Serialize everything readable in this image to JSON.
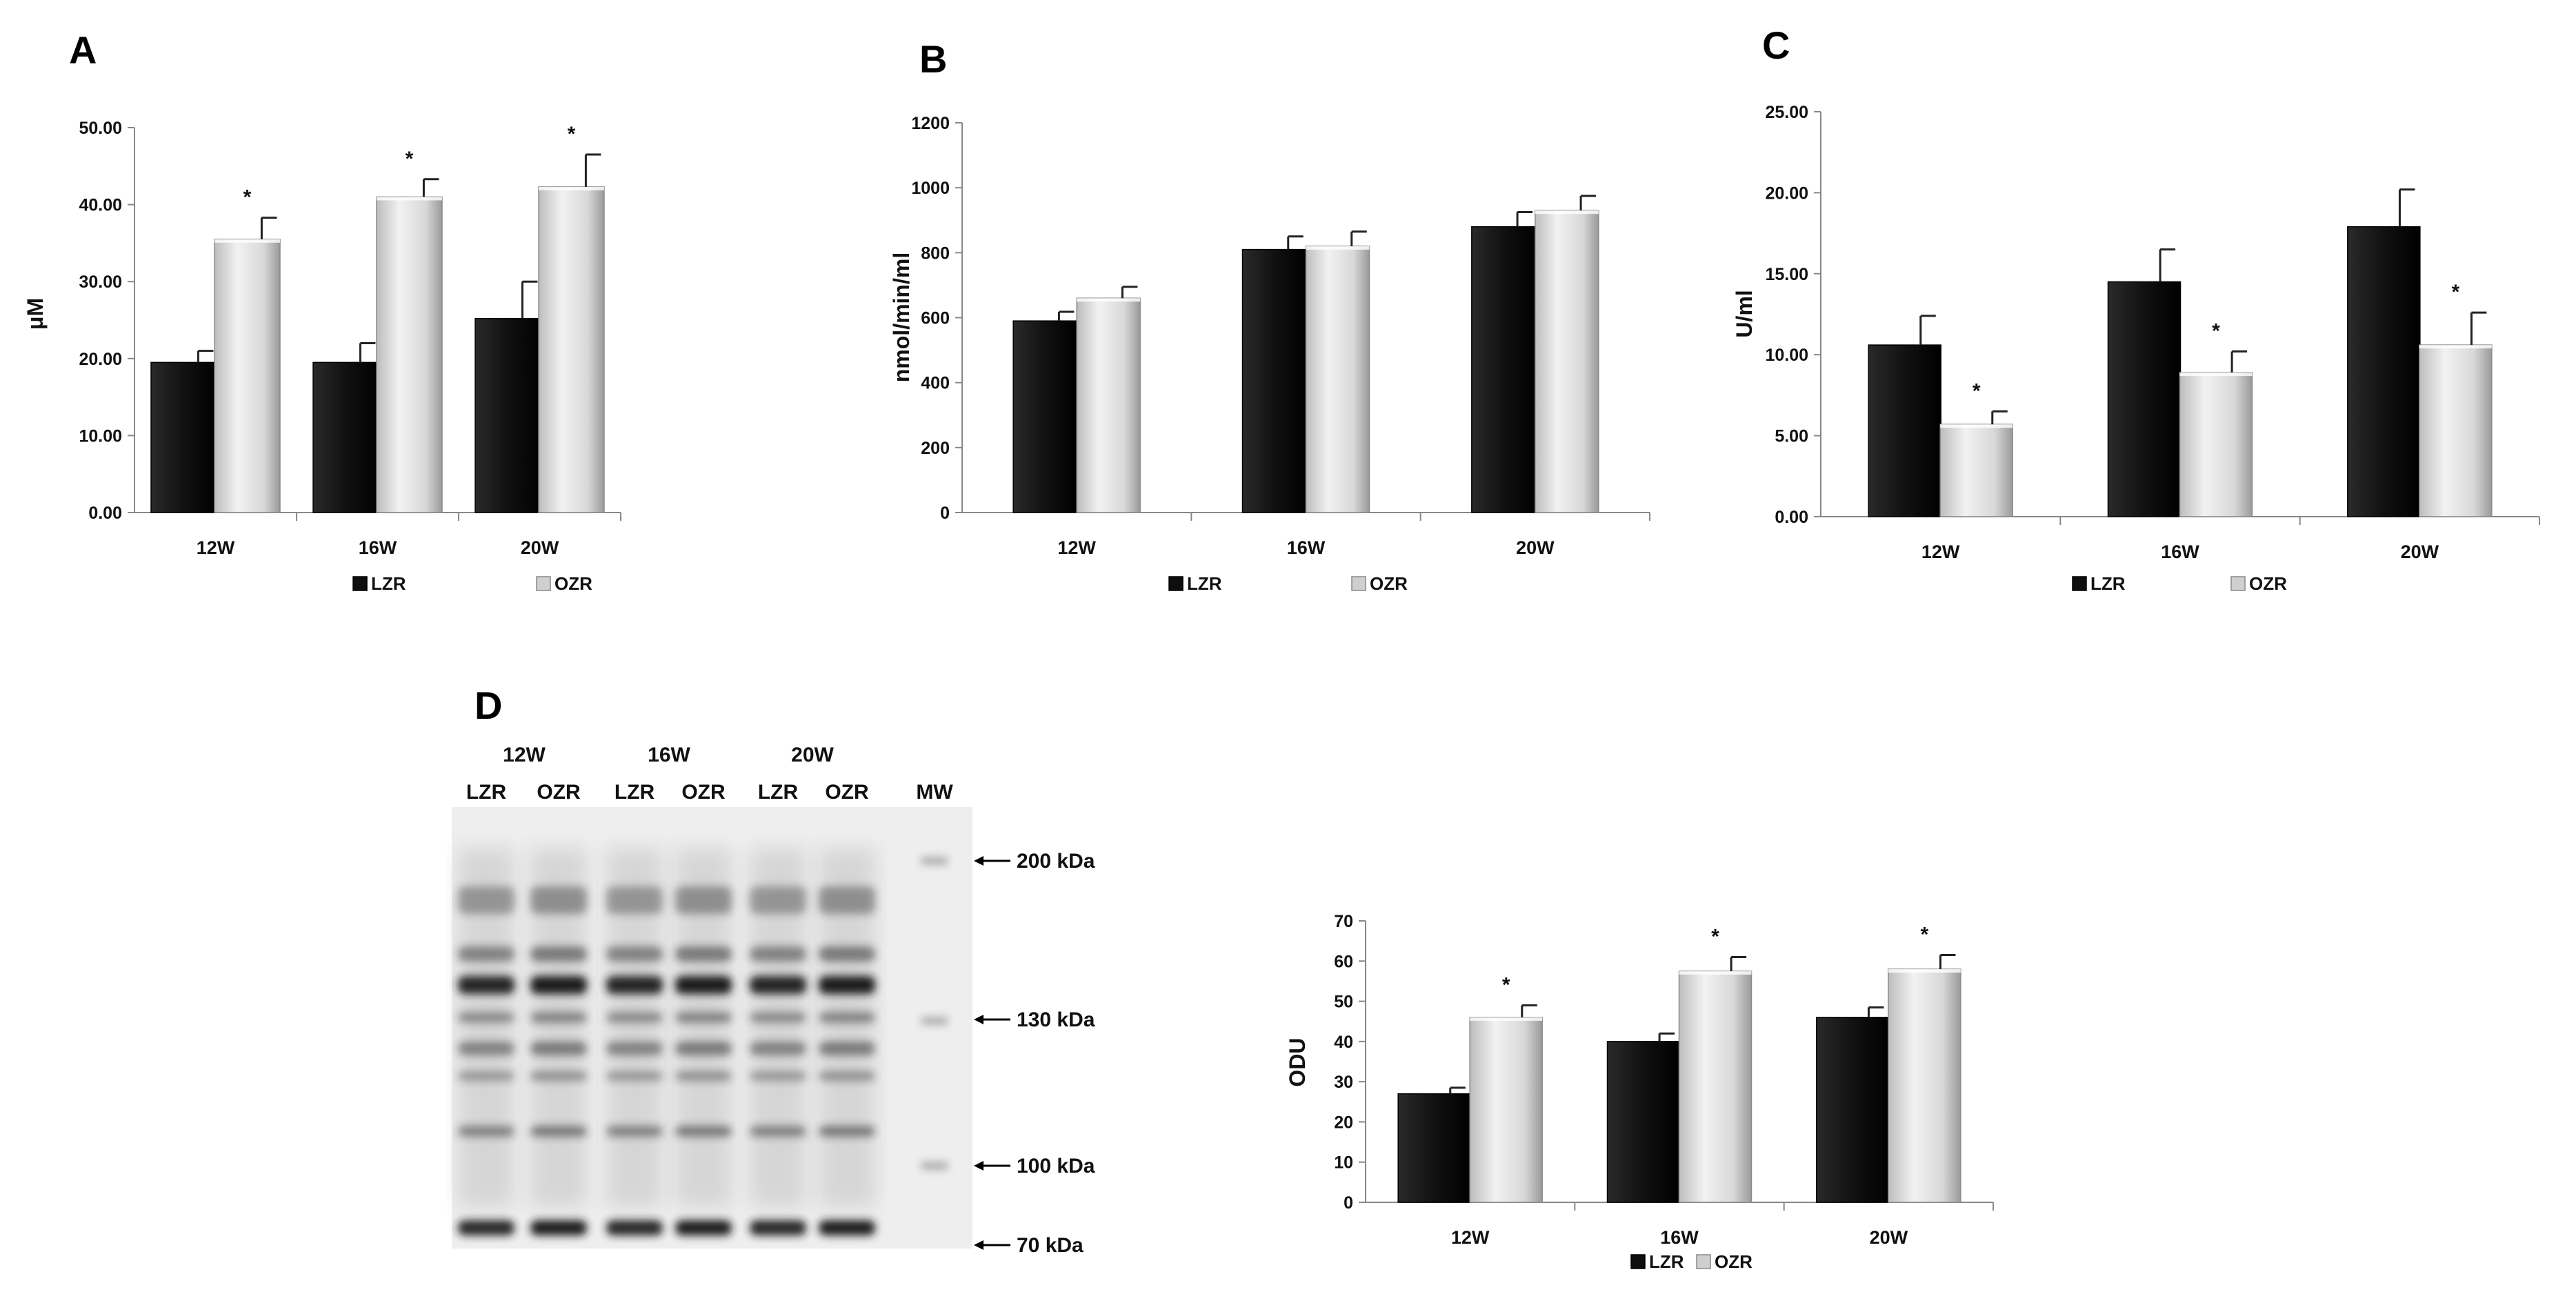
{
  "colors": {
    "lzr_top": "#3a3a3a",
    "lzr_bottom": "#0c0c0c",
    "ozr_light": "#e4e4e4",
    "ozr_dark": "#9a9a9a",
    "blot_bg": "#eeeeee",
    "band": "#1a1a1a"
  },
  "chart_data": [
    {
      "id": "A",
      "panel": "A",
      "type": "bar",
      "categories": [
        "12W",
        "16W",
        "20W"
      ],
      "ylabel": "μM",
      "ylim": [
        0,
        50
      ],
      "yticks": [
        "0.00",
        "10.00",
        "20.00",
        "30.00",
        "40.00",
        "50.00"
      ],
      "series": [
        {
          "name": "LZR",
          "values": [
            19.5,
            19.5,
            25.2
          ],
          "errors": [
            1.5,
            2.5,
            4.8
          ],
          "star": [
            false,
            false,
            false
          ]
        },
        {
          "name": "OZR",
          "values": [
            35.5,
            41.0,
            42.3
          ],
          "errors": [
            2.8,
            2.3,
            4.2
          ],
          "star": [
            true,
            true,
            true
          ]
        }
      ],
      "star_text": "*",
      "legend": [
        "LZR",
        "OZR"
      ]
    },
    {
      "id": "B",
      "panel": "B",
      "type": "bar",
      "categories": [
        "12W",
        "16W",
        "20W"
      ],
      "ylabel": "nmol/min/ml",
      "ylim": [
        0,
        1200
      ],
      "yticks": [
        "0",
        "200",
        "400",
        "600",
        "800",
        "1000",
        "1200"
      ],
      "series": [
        {
          "name": "LZR",
          "values": [
            590,
            810,
            880
          ],
          "errors": [
            28,
            40,
            45
          ],
          "star": [
            false,
            false,
            false
          ]
        },
        {
          "name": "OZR",
          "values": [
            660,
            820,
            930
          ],
          "errors": [
            35,
            45,
            45
          ],
          "star": [
            false,
            false,
            false
          ]
        }
      ],
      "star_text": "*",
      "legend": [
        "LZR",
        "OZR"
      ]
    },
    {
      "id": "C",
      "panel": "C",
      "type": "bar",
      "categories": [
        "12W",
        "16W",
        "20W"
      ],
      "ylabel": "U/ml",
      "ylim": [
        0,
        25
      ],
      "yticks": [
        "0.00",
        "5.00",
        "10.00",
        "15.00",
        "20.00",
        "25.00"
      ],
      "series": [
        {
          "name": "LZR",
          "values": [
            10.6,
            14.5,
            17.9
          ],
          "errors": [
            1.8,
            2.0,
            2.3
          ],
          "star": [
            false,
            false,
            false
          ]
        },
        {
          "name": "OZR",
          "values": [
            5.7,
            8.9,
            10.6
          ],
          "errors": [
            0.8,
            1.3,
            2.0
          ],
          "star": [
            true,
            true,
            true
          ]
        }
      ],
      "star_text": "*",
      "legend": [
        "LZR",
        "OZR"
      ]
    },
    {
      "id": "D",
      "panel": "",
      "type": "bar",
      "categories": [
        "12W",
        "16W",
        "20W"
      ],
      "ylabel": "ODU",
      "ylim": [
        0,
        70
      ],
      "yticks": [
        "0",
        "10",
        "20",
        "30",
        "40",
        "50",
        "60",
        "70"
      ],
      "series": [
        {
          "name": "LZR",
          "values": [
            27,
            40,
            46
          ],
          "errors": [
            1.5,
            2.0,
            2.5
          ],
          "star": [
            false,
            false,
            false
          ]
        },
        {
          "name": "OZR",
          "values": [
            46,
            57.5,
            58
          ],
          "errors": [
            3.0,
            3.5,
            3.5
          ],
          "star": [
            true,
            true,
            true
          ]
        }
      ],
      "star_text": "*",
      "legend": [
        "LZR",
        "OZR"
      ]
    }
  ],
  "blot": {
    "panel": "D",
    "groups": [
      "12W",
      "16W",
      "20W"
    ],
    "lanes": [
      "LZR",
      "OZR",
      "LZR",
      "OZR",
      "LZR",
      "OZR",
      "MW"
    ],
    "markers": [
      "200 kDa",
      "130 kDa",
      "100 kDa",
      "70 kDa"
    ]
  }
}
